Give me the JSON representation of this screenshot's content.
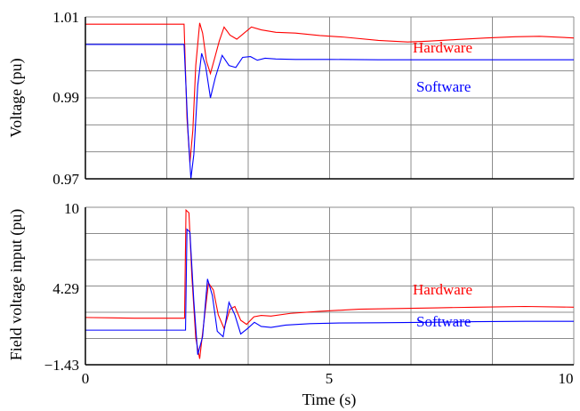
{
  "chart_data": {
    "type": "line",
    "x": {
      "label": "Time (s)",
      "range": [
        0,
        10
      ],
      "tick_labels": [
        "0",
        "5",
        "10"
      ],
      "tick_values": [
        0,
        5,
        10
      ],
      "grid": true
    },
    "panels": [
      {
        "ylabel": "Voltage (pu)",
        "ylim": [
          0.97,
          1.01
        ],
        "tick_labels": [
          "1.01",
          "0.99",
          "0.97"
        ],
        "tick_values": [
          1.01,
          0.99,
          0.97
        ],
        "grid": true,
        "series": [
          {
            "name": "Hardware",
            "color": "#ff0000",
            "points": [
              [
                0,
                1.0082
              ],
              [
                2.0,
                1.0082
              ],
              [
                2.02,
                1.0082
              ],
              [
                2.08,
                0.985
              ],
              [
                2.14,
                0.974
              ],
              [
                2.2,
                0.982
              ],
              [
                2.26,
                0.998
              ],
              [
                2.34,
                1.0085
              ],
              [
                2.4,
                1.006
              ],
              [
                2.48,
                0.999
              ],
              [
                2.56,
                0.996
              ],
              [
                2.64,
                0.9995
              ],
              [
                2.74,
                1.004
              ],
              [
                2.84,
                1.0075
              ],
              [
                2.96,
                1.0055
              ],
              [
                3.1,
                1.0045
              ],
              [
                3.25,
                1.006
              ],
              [
                3.4,
                1.0075
              ],
              [
                3.6,
                1.0068
              ],
              [
                3.9,
                1.0062
              ],
              [
                4.3,
                1.006
              ],
              [
                4.8,
                1.0054
              ],
              [
                5.3,
                1.005
              ],
              [
                6.0,
                1.0042
              ],
              [
                6.6,
                1.0038
              ],
              [
                7.0,
                1.004
              ],
              [
                7.6,
                1.0044
              ],
              [
                8.2,
                1.0048
              ],
              [
                8.8,
                1.0051
              ],
              [
                9.3,
                1.0052
              ],
              [
                10.0,
                1.0048
              ]
            ]
          },
          {
            "name": "Software",
            "color": "#0000ff",
            "points": [
              [
                0,
                1.0032
              ],
              [
                2.0,
                1.0032
              ],
              [
                2.02,
                1.0032
              ],
              [
                2.1,
                0.982
              ],
              [
                2.16,
                0.97
              ],
              [
                2.22,
                0.976
              ],
              [
                2.3,
                0.993
              ],
              [
                2.38,
                1.001
              ],
              [
                2.46,
                0.998
              ],
              [
                2.56,
                0.99
              ],
              [
                2.66,
                0.995
              ],
              [
                2.8,
                1.0005
              ],
              [
                2.94,
                0.998
              ],
              [
                3.08,
                0.9975
              ],
              [
                3.22,
                1.0
              ],
              [
                3.38,
                1.0002
              ],
              [
                3.52,
                0.9993
              ],
              [
                3.68,
                0.9998
              ],
              [
                3.9,
                0.9996
              ],
              [
                4.3,
                0.9995
              ],
              [
                5.0,
                0.9995
              ],
              [
                6.0,
                0.9994
              ],
              [
                7.0,
                0.9994
              ],
              [
                8.0,
                0.9994
              ],
              [
                9.0,
                0.9994
              ],
              [
                10.0,
                0.9994
              ]
            ]
          }
        ]
      },
      {
        "ylabel": "Field voltage input (pu)",
        "ylim": [
          -1.43,
          10
        ],
        "tick_labels": [
          "10",
          "4.29",
          "−1.43"
        ],
        "tick_values": [
          10,
          4.29,
          -1.43
        ],
        "grid": true,
        "series": [
          {
            "name": "Hardware",
            "color": "#ff0000",
            "points": [
              [
                0,
                2.0
              ],
              [
                1.0,
                1.95
              ],
              [
                2.0,
                1.95
              ],
              [
                2.03,
                1.95
              ],
              [
                2.06,
                9.8
              ],
              [
                2.12,
                9.6
              ],
              [
                2.18,
                5.0
              ],
              [
                2.26,
                0.5
              ],
              [
                2.34,
                -1.0
              ],
              [
                2.42,
                1.5
              ],
              [
                2.52,
                4.5
              ],
              [
                2.62,
                4.0
              ],
              [
                2.72,
                2.2
              ],
              [
                2.84,
                1.2
              ],
              [
                2.96,
                2.6
              ],
              [
                3.06,
                2.8
              ],
              [
                3.18,
                1.8
              ],
              [
                3.3,
                1.5
              ],
              [
                3.45,
                2.05
              ],
              [
                3.6,
                2.15
              ],
              [
                3.8,
                2.1
              ],
              [
                4.2,
                2.3
              ],
              [
                4.8,
                2.45
              ],
              [
                5.6,
                2.6
              ],
              [
                6.4,
                2.65
              ],
              [
                7.2,
                2.7
              ],
              [
                8.0,
                2.75
              ],
              [
                9.0,
                2.8
              ],
              [
                10.0,
                2.75
              ]
            ]
          },
          {
            "name": "Software",
            "color": "#0000ff",
            "points": [
              [
                0,
                1.08
              ],
              [
                2.0,
                1.08
              ],
              [
                2.02,
                1.08
              ],
              [
                2.05,
                1.08
              ],
              [
                2.08,
                8.4
              ],
              [
                2.14,
                8.2
              ],
              [
                2.22,
                3.2
              ],
              [
                2.3,
                -0.7
              ],
              [
                2.4,
                0.6
              ],
              [
                2.5,
                4.8
              ],
              [
                2.6,
                3.6
              ],
              [
                2.7,
                1.0
              ],
              [
                2.82,
                0.6
              ],
              [
                2.94,
                3.1
              ],
              [
                3.06,
                2.2
              ],
              [
                3.18,
                0.8
              ],
              [
                3.32,
                1.2
              ],
              [
                3.46,
                1.65
              ],
              [
                3.6,
                1.35
              ],
              [
                3.8,
                1.28
              ],
              [
                4.1,
                1.45
              ],
              [
                4.6,
                1.55
              ],
              [
                5.2,
                1.6
              ],
              [
                6.0,
                1.62
              ],
              [
                7.0,
                1.65
              ],
              [
                8.0,
                1.7
              ],
              [
                9.0,
                1.72
              ],
              [
                10.0,
                1.72
              ]
            ]
          }
        ]
      }
    ],
    "legend_placement": "right, inline labels"
  }
}
